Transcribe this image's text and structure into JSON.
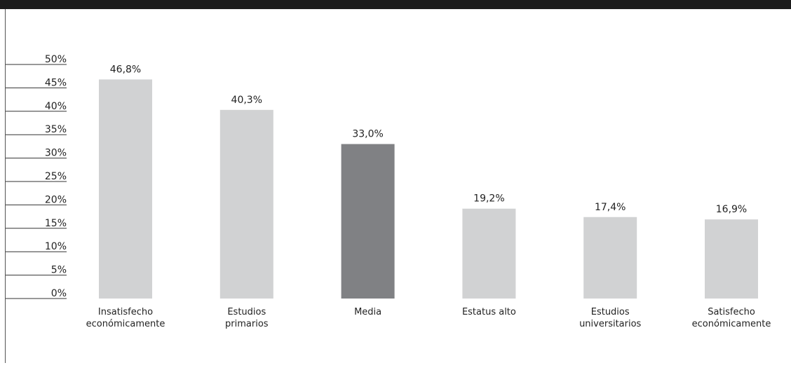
{
  "header": {
    "text": "",
    "color": "#1c1c1c"
  },
  "chart_data": {
    "type": "bar",
    "categories": [
      [
        "Insatisfecho",
        "económicamente"
      ],
      [
        "Estudios",
        "primarios"
      ],
      [
        "Media"
      ],
      [
        "Estatus alto"
      ],
      [
        "Estudios",
        "universitarios"
      ],
      [
        "Satisfecho",
        "económicamente"
      ]
    ],
    "values": [
      46.8,
      40.3,
      33.0,
      19.2,
      17.4,
      16.9
    ],
    "value_labels": [
      "46,8%",
      "40,3%",
      "33,0%",
      "19,2%",
      "17,4%",
      "16,9%"
    ],
    "highlight_index": 2,
    "colors": {
      "bar": "#d1d2d3",
      "highlight": "#808184",
      "axis": "#333333"
    },
    "ylim": [
      0,
      50
    ],
    "yticks": [
      0,
      5,
      10,
      15,
      20,
      25,
      30,
      35,
      40,
      45,
      50
    ],
    "ytick_labels": [
      "0%",
      "5%",
      "10%",
      "15%",
      "20%",
      "25%",
      "30%",
      "35%",
      "40%",
      "45%",
      "50%"
    ],
    "title": "",
    "xlabel": "",
    "ylabel": "",
    "grid": false,
    "legend": "none"
  }
}
